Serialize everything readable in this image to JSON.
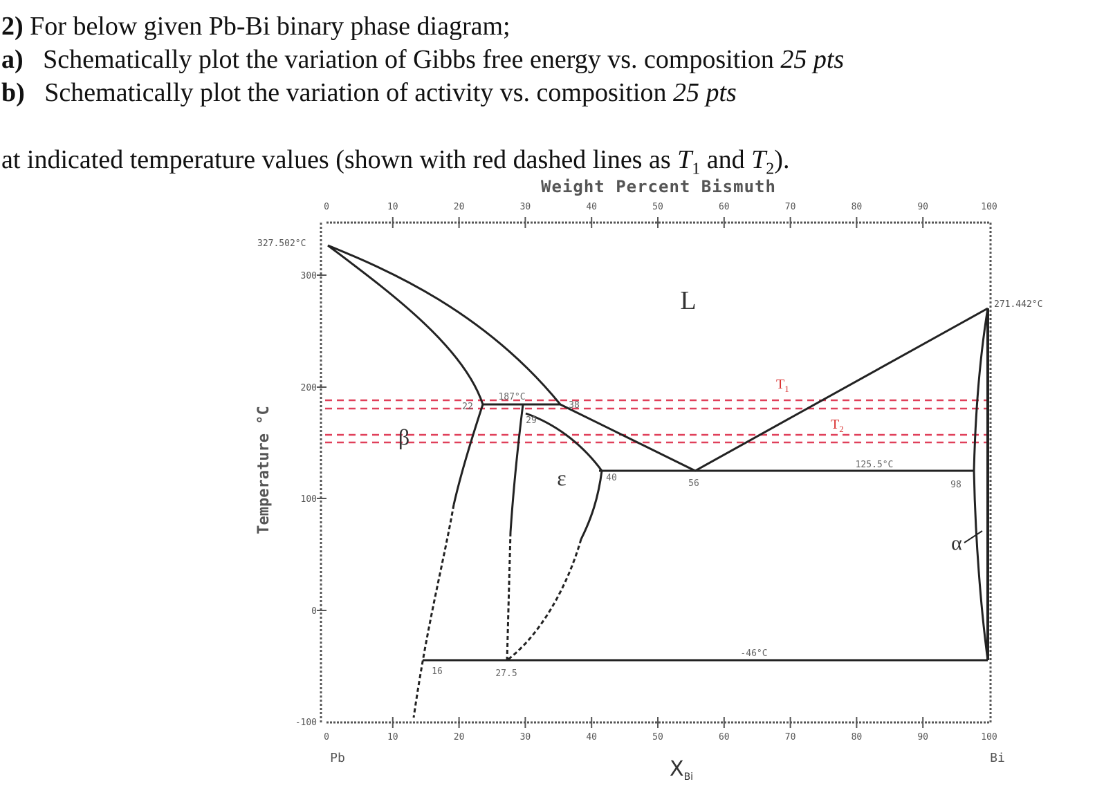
{
  "question": {
    "num": "2)",
    "intro": "For below given Pb-Bi binary phase diagram;",
    "a_label": "a)",
    "a_text": "Schematically plot the variation of Gibbs free energy vs. composition",
    "a_pts": "25 pts",
    "b_label": "b)",
    "b_text": "Schematically plot the variation of activity vs. composition",
    "b_pts": "25 pts",
    "note_pre": "at indicated temperature values (shown with red dashed lines as ",
    "t1": "T",
    "t1_sub": "1",
    "note_and": " and ",
    "t2": "T",
    "t2_sub": "2",
    "note_post": ")."
  },
  "diagram": {
    "top_axis_title": "Weight Percent Bismuth",
    "top_ticks": [
      "0",
      "10",
      "20",
      "30",
      "40",
      "50",
      "60",
      "70",
      "80",
      "90",
      "100"
    ],
    "bottom_ticks": [
      "0",
      "10",
      "20",
      "30",
      "40",
      "50",
      "60",
      "70",
      "80",
      "90",
      "100"
    ],
    "y_axis_title": "Temperature °C",
    "y_ticks": [
      "300",
      "200",
      "100",
      "0",
      "-100"
    ],
    "x_axis_title": "X",
    "x_axis_sub": "Bi",
    "left_element": "Pb",
    "right_element": "Bi",
    "melt_pb": "327.502°C",
    "melt_bi": "271.442°C",
    "phase_L": "L",
    "phase_beta": "β",
    "phase_epsilon": "ε",
    "phase_alpha": "α",
    "peritectic_temp": "187°C",
    "eutectic_temp": "125.5°C",
    "low_temp": "-46°C",
    "comp_22": "22",
    "comp_29": "29",
    "comp_38": "38",
    "comp_40": "40",
    "comp_56": "56",
    "comp_98": "98",
    "comp_16": "16",
    "comp_27_5": "27.5",
    "T1_label": "T",
    "T1_sub": "1",
    "T2_label": "T",
    "T2_sub": "2",
    "colors": {
      "line": "#222222",
      "red_dash": "#e0405a",
      "label_red": "#d9302f",
      "tick_text": "#555555"
    }
  }
}
